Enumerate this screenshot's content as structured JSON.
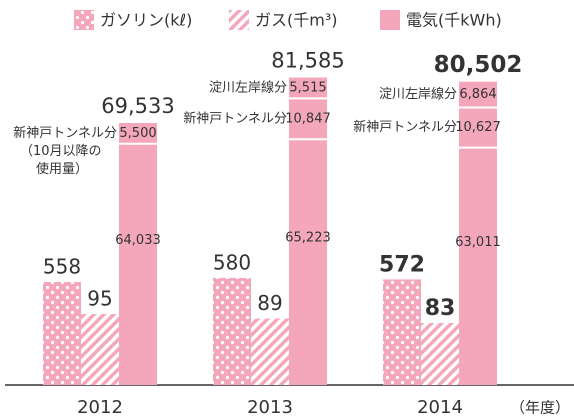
{
  "chart_data": {
    "type": "bar",
    "categories": [
      "2012",
      "2013",
      "2014"
    ],
    "xlabel": "（年度）",
    "series": [
      {
        "name": "ガソリン(kℓ)",
        "color": "#f4a7bb",
        "values": [
          558,
          580,
          572
        ]
      },
      {
        "name": "ガス(千m³)",
        "color": "#f4a7bb",
        "values": [
          95,
          89,
          83
        ]
      },
      {
        "name": "電気(千kWh)",
        "color": "#f4a7bb",
        "segments": [
          {
            "values": [
              64033,
              65223,
              63011
            ],
            "value_labels": [
              "64,033",
              "65,223",
              "63,011"
            ]
          },
          {
            "name": "新神戸トンネル分",
            "values": [
              5500,
              10847,
              10627
            ],
            "value_labels": [
              "5,500",
              "10,847",
              "10,627"
            ]
          },
          {
            "name": "淀川左岸線分",
            "values": [
              null,
              5515,
              6864
            ],
            "value_labels": [
              null,
              "5,515",
              "6,864"
            ]
          }
        ],
        "totals": [
          69533,
          81585,
          80502
        ],
        "total_labels": [
          "69,533",
          "81,585",
          "80,502"
        ]
      }
    ],
    "note": [
      "（10月以降の",
      "使用量）"
    ]
  }
}
